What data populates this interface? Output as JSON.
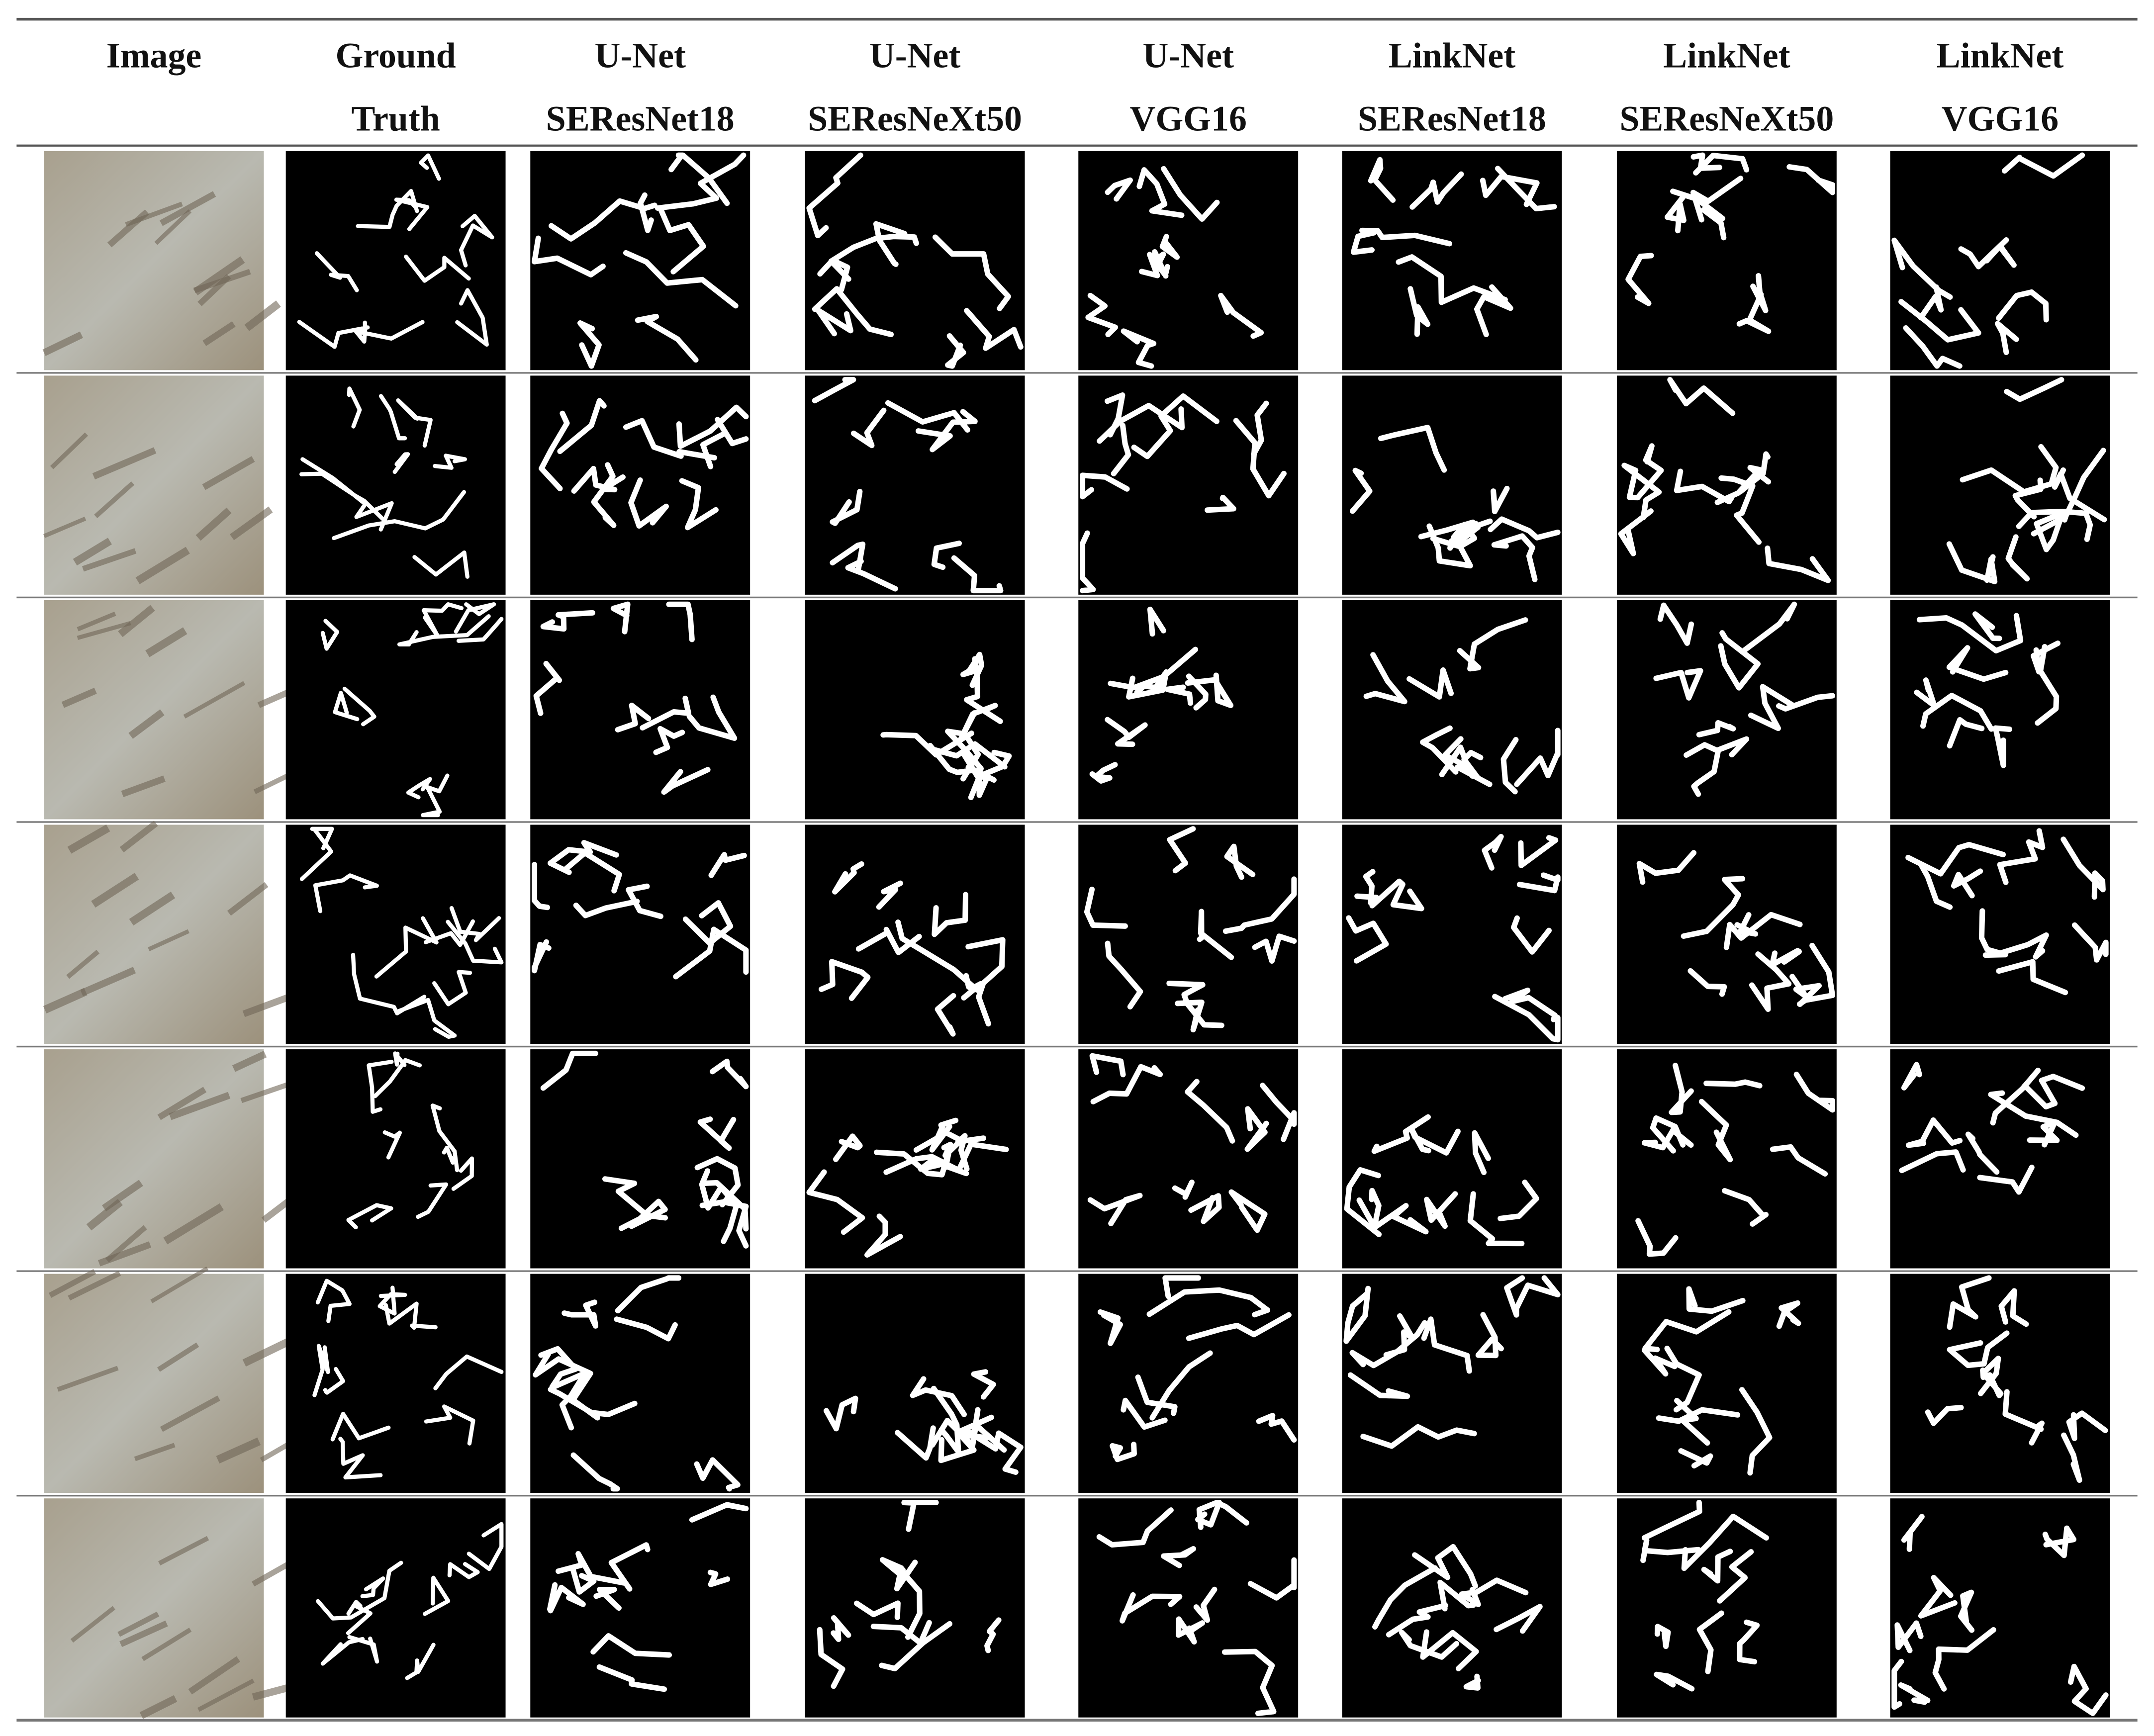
{
  "table": {
    "columns": [
      [
        "Image"
      ],
      [
        "Ground",
        "Truth"
      ],
      [
        "U-Net",
        "SEResNet18"
      ],
      [
        "U-Net",
        "SEResNeXt50"
      ],
      [
        "U-Net",
        "VGG16"
      ],
      [
        "LinkNet",
        "SEResNet18"
      ],
      [
        "LinkNet",
        "SEResNeXt50"
      ],
      [
        "LinkNet",
        "VGG16"
      ]
    ]
  }
}
